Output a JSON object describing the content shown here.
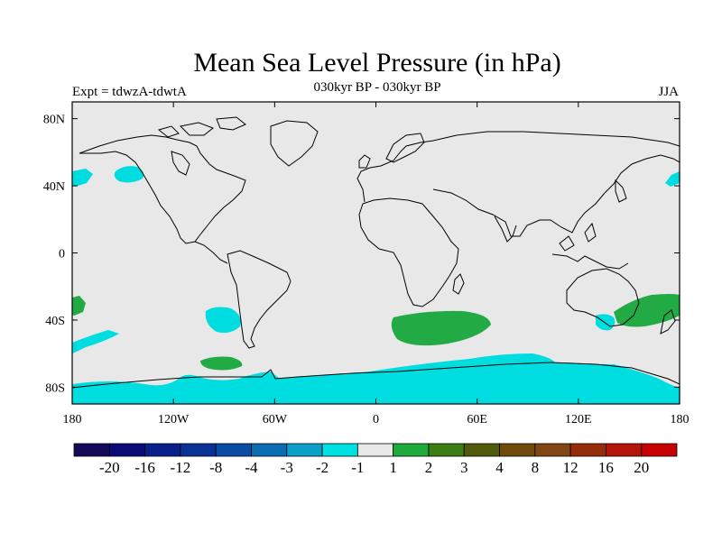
{
  "title": "Mean Sea Level Pressure (in hPa)",
  "subtitle": "030kyr BP - 030kyr BP",
  "left_label": "Expt = tdwzA-tdwtA",
  "right_label": "JJA",
  "colors": {
    "background": "#e8e8e8",
    "coast": "#000000",
    "neg1": "#00dde0",
    "pos1": "#22aa44"
  },
  "x_ticks": [
    "180",
    "120W",
    "60W",
    "0",
    "60E",
    "120E",
    "180"
  ],
  "y_ticks": [
    "80N",
    "40N",
    "0",
    "40S",
    "80S"
  ],
  "colorbar": {
    "labels": [
      "-20",
      "-16",
      "-12",
      "-8",
      "-4",
      "-3",
      "-2",
      "-1",
      "1",
      "2",
      "3",
      "4",
      "8",
      "12",
      "16",
      "20"
    ],
    "colors": [
      "#140a5a",
      "#0a0a78",
      "#0a1e8c",
      "#0a3296",
      "#0a4ba5",
      "#0a6eb4",
      "#0aa0c8",
      "#00e1e1",
      "#e8e8e8",
      "#1eaa3c",
      "#3c7d14",
      "#505a0a",
      "#6e4b0a",
      "#824614",
      "#962d0a",
      "#b4140a",
      "#c80000"
    ]
  }
}
